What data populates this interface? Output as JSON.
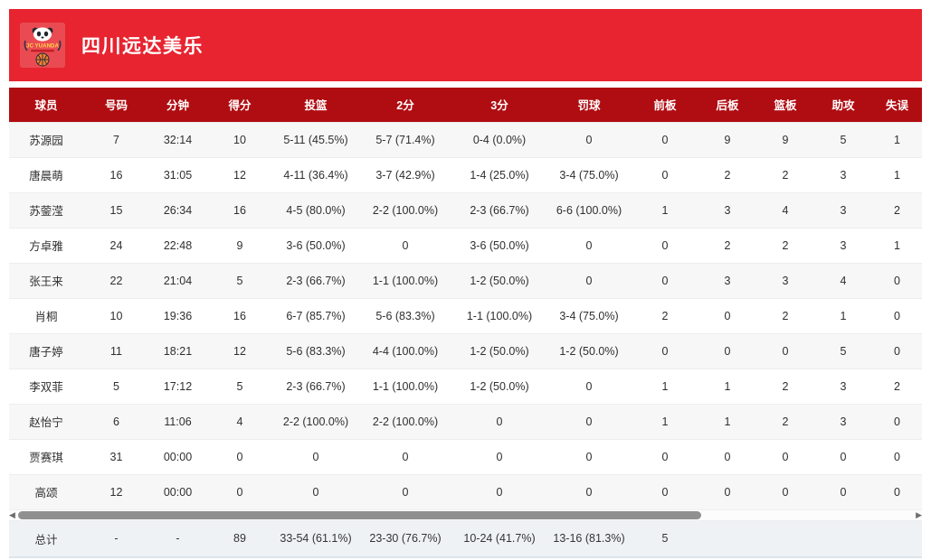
{
  "team": {
    "name": "四川远达美乐",
    "logo_text": "JC YUANDA"
  },
  "colors": {
    "banner_red": "#e72430",
    "header_dark_red": "#b00d12",
    "row_alt": "#f7f7f7",
    "total_bg": "#eff2f5",
    "scrollbar_thumb": "#909090"
  },
  "table": {
    "columns": [
      "球员",
      "号码",
      "分钟",
      "得分",
      "投篮",
      "2分",
      "3分",
      "罚球",
      "前板",
      "后板",
      "篮板",
      "助攻",
      "失误"
    ],
    "column_keys": [
      "player",
      "number",
      "minutes",
      "points",
      "fg",
      "2p",
      "3p",
      "ft",
      "oreb",
      "dreb",
      "reb",
      "ast",
      "to"
    ],
    "rows": [
      [
        "苏源园",
        "7",
        "32:14",
        "10",
        "5-11 (45.5%)",
        "5-7 (71.4%)",
        "0-4 (0.0%)",
        "0",
        "0",
        "9",
        "9",
        "5",
        "1"
      ],
      [
        "唐晨萌",
        "16",
        "31:05",
        "12",
        "4-11 (36.4%)",
        "3-7 (42.9%)",
        "1-4 (25.0%)",
        "3-4 (75.0%)",
        "0",
        "2",
        "2",
        "3",
        "1"
      ],
      [
        "苏蓥滢",
        "15",
        "26:34",
        "16",
        "4-5 (80.0%)",
        "2-2 (100.0%)",
        "2-3 (66.7%)",
        "6-6 (100.0%)",
        "1",
        "3",
        "4",
        "3",
        "2"
      ],
      [
        "方卓雅",
        "24",
        "22:48",
        "9",
        "3-6 (50.0%)",
        "0",
        "3-6 (50.0%)",
        "0",
        "0",
        "2",
        "2",
        "3",
        "1"
      ],
      [
        "张王来",
        "22",
        "21:04",
        "5",
        "2-3 (66.7%)",
        "1-1 (100.0%)",
        "1-2 (50.0%)",
        "0",
        "0",
        "3",
        "3",
        "4",
        "0"
      ],
      [
        "肖桐",
        "10",
        "19:36",
        "16",
        "6-7 (85.7%)",
        "5-6 (83.3%)",
        "1-1 (100.0%)",
        "3-4 (75.0%)",
        "2",
        "0",
        "2",
        "1",
        "0"
      ],
      [
        "唐子婷",
        "11",
        "18:21",
        "12",
        "5-6 (83.3%)",
        "4-4 (100.0%)",
        "1-2 (50.0%)",
        "1-2 (50.0%)",
        "0",
        "0",
        "0",
        "5",
        "0"
      ],
      [
        "李双菲",
        "5",
        "17:12",
        "5",
        "2-3 (66.7%)",
        "1-1 (100.0%)",
        "1-2 (50.0%)",
        "0",
        "1",
        "1",
        "2",
        "3",
        "2"
      ],
      [
        "赵怡宁",
        "6",
        "11:06",
        "4",
        "2-2 (100.0%)",
        "2-2 (100.0%)",
        "0",
        "0",
        "1",
        "1",
        "2",
        "3",
        "0"
      ],
      [
        "贾赛琪",
        "31",
        "00:00",
        "0",
        "0",
        "0",
        "0",
        "0",
        "0",
        "0",
        "0",
        "0",
        "0"
      ],
      [
        "高颂",
        "12",
        "00:00",
        "0",
        "0",
        "0",
        "0",
        "0",
        "0",
        "0",
        "0",
        "0",
        "0"
      ]
    ],
    "total_row": [
      "总计",
      "-",
      "-",
      "89",
      "33-54 (61.1%)",
      "23-30 (76.7%)",
      "10-24 (41.7%)",
      "13-16 (81.3%)",
      "5",
      "",
      "",
      "",
      ""
    ]
  },
  "scrollbar": {
    "left_arrow": "◀",
    "right_arrow": "▶"
  }
}
